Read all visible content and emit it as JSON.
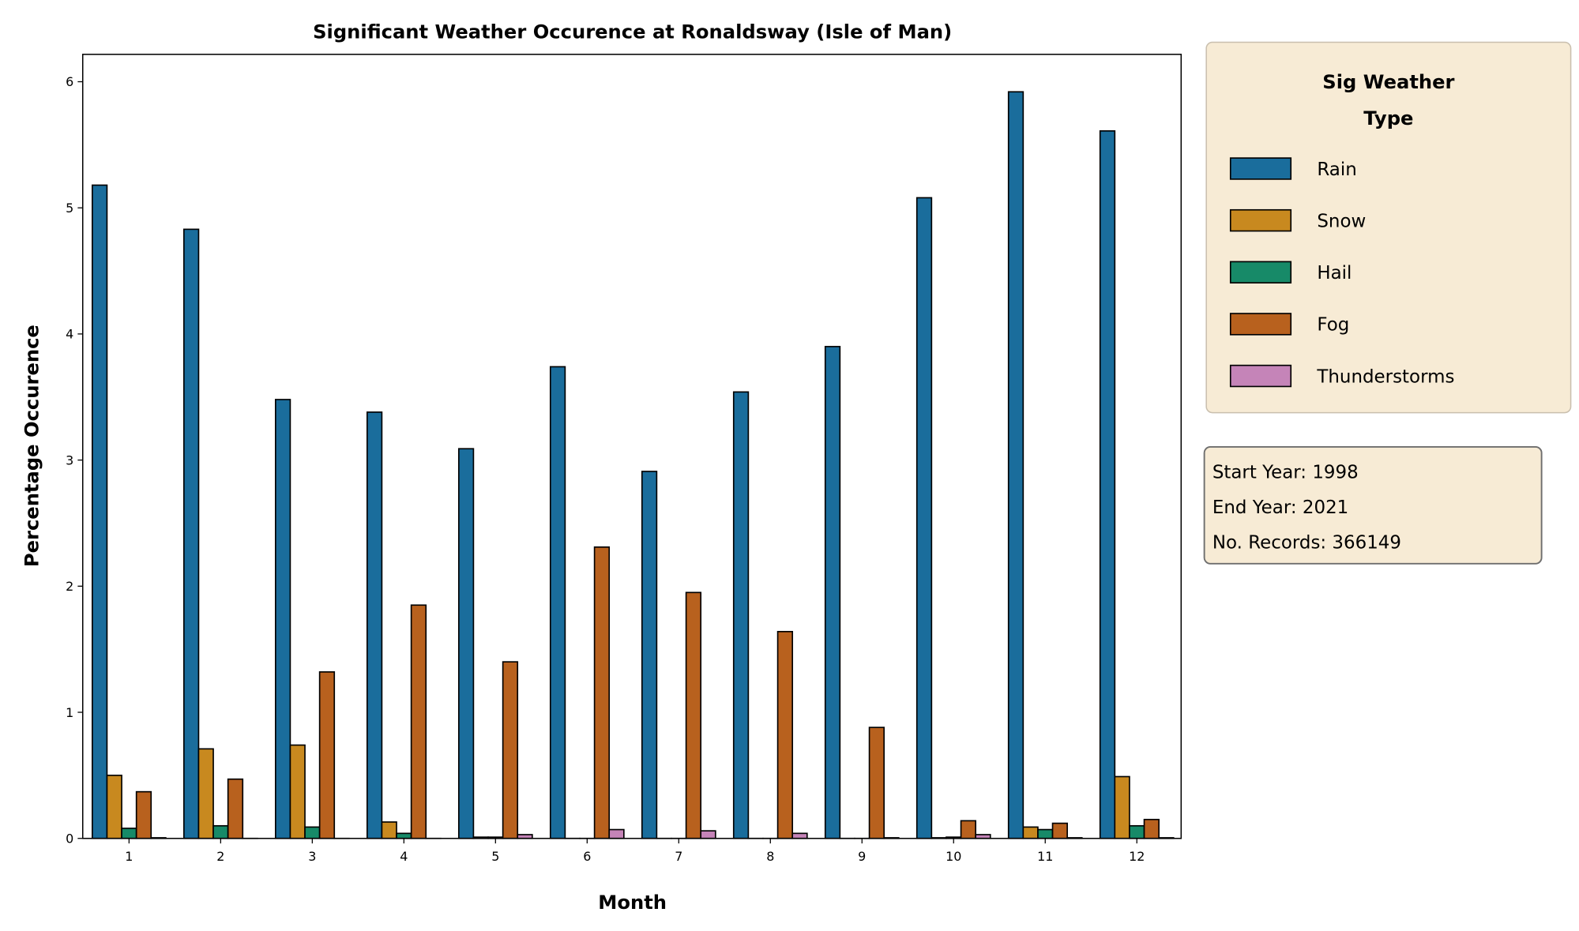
{
  "chart_data": {
    "type": "bar",
    "title": "Significant Weather Occurence at Ronaldsway (Isle of Man)",
    "xlabel": "Month",
    "ylabel": "Percentage Occurence",
    "ylim": [
      0,
      6.2
    ],
    "yticks": [
      "0",
      "1",
      "2",
      "3",
      "4",
      "5",
      "6"
    ],
    "categories": [
      "1",
      "2",
      "3",
      "4",
      "5",
      "6",
      "7",
      "8",
      "9",
      "10",
      "11",
      "12"
    ],
    "grid": false,
    "legend": {
      "title_line1": "Sig Weather",
      "title_line2": "Type",
      "placement": "outside-top-right"
    },
    "series": [
      {
        "name": "Rain",
        "color": "#1a6d9c",
        "values": [
          5.18,
          4.83,
          3.48,
          3.38,
          3.09,
          3.74,
          2.91,
          3.54,
          3.9,
          5.08,
          5.92,
          5.61
        ]
      },
      {
        "name": "Snow",
        "color": "#c8891f",
        "values": [
          0.5,
          0.71,
          0.74,
          0.13,
          0.01,
          0,
          0,
          0,
          0,
          0.005,
          0.09,
          0.49
        ]
      },
      {
        "name": "Hail",
        "color": "#178a68",
        "values": [
          0.08,
          0.1,
          0.09,
          0.04,
          0.01,
          0,
          0,
          0,
          0,
          0.01,
          0.07,
          0.1
        ]
      },
      {
        "name": "Fog",
        "color": "#b8611e",
        "values": [
          0.37,
          0.47,
          1.32,
          1.85,
          1.4,
          2.31,
          1.95,
          1.64,
          0.88,
          0.14,
          0.12,
          0.15
        ]
      },
      {
        "name": "Thunderstorms",
        "color": "#c584b8",
        "values": [
          0.005,
          0,
          0,
          0,
          0.03,
          0.07,
          0.06,
          0.04,
          0.005,
          0.03,
          0.005,
          0.005
        ]
      }
    ],
    "annotation": {
      "line1": "Start Year: 1998",
      "line2": "End Year: 2021",
      "line3": "No. Records: 366149"
    }
  }
}
